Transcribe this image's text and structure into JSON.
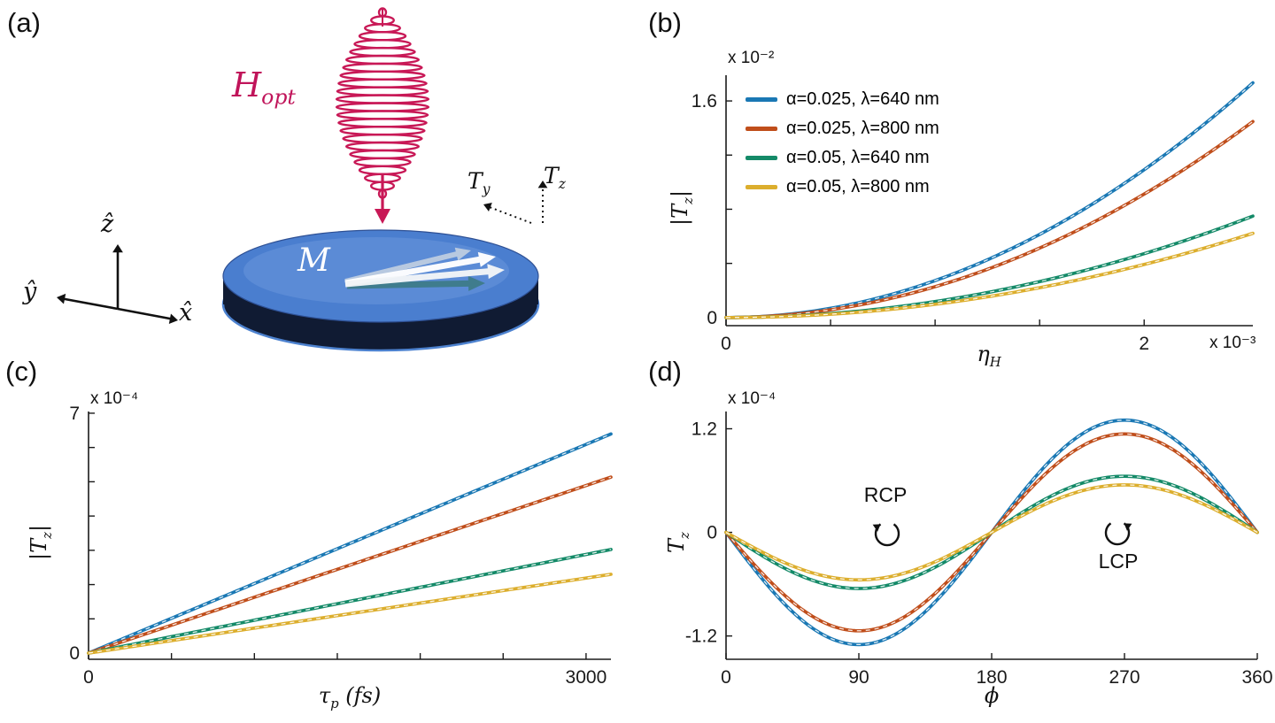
{
  "figure": {
    "background": "#ffffff",
    "panel_labels": {
      "a": "(a)",
      "b": "(b)",
      "c": "(c)",
      "d": "(d)"
    }
  },
  "panel_a": {
    "field_label": {
      "base": "H",
      "sub": "opt"
    },
    "magnetization_label": "M",
    "torque_y": {
      "base": "T",
      "sub": "y"
    },
    "torque_z": {
      "base": "T",
      "sub": "z"
    },
    "axis_x": "x̂",
    "axis_y": "ŷ",
    "axis_z": "ẑ",
    "colors": {
      "spiral": "#c81856",
      "field_label": "#c0145a",
      "disk_top": "#4a7ecf",
      "disk_top_highlight": "#6b97dd",
      "disk_side": "#101b33",
      "disk_rim": "#4d82cf",
      "arrow_teal": "#3c7a85"
    }
  },
  "panel_d_annotations": {
    "rcp": "RCP",
    "lcp": "LCP"
  },
  "chart_data": [
    {
      "panel": "b",
      "type": "line",
      "title": "",
      "xlabel": {
        "base": "η",
        "sub": "H",
        "post": ""
      },
      "ylabel": {
        "pre": "|",
        "base": "T",
        "sub": "z",
        "post": "|"
      },
      "x_multiplier": "x 10⁻³",
      "y_multiplier": "x 10⁻²",
      "xlim": [
        0,
        2.52
      ],
      "ylim": [
        -0.06,
        1.79
      ],
      "xticks": [
        0,
        0.5,
        1,
        1.5,
        2
      ],
      "xtick_labels": [
        "0",
        "",
        "",
        "",
        "2"
      ],
      "yticks": [
        0,
        0.4,
        0.8,
        1.2,
        1.6
      ],
      "ytick_labels": [
        "0",
        "",
        "",
        "",
        "1.6"
      ],
      "grid": false,
      "legend_position": "top-left",
      "series": [
        {
          "name": "α=0.025, λ=640 nm",
          "color": "#1a78b4",
          "model": {
            "type": "quadratic",
            "a": 0.273
          },
          "x": [
            0,
            0.5,
            1.0,
            1.5,
            2.0,
            2.5
          ],
          "y": [
            0,
            0.068,
            0.273,
            0.614,
            1.092,
            1.706
          ]
        },
        {
          "name": "α=0.025, λ=800 nm",
          "color": "#c04e1b",
          "model": {
            "type": "quadratic",
            "a": 0.228
          },
          "x": [
            0,
            0.5,
            1.0,
            1.5,
            2.0,
            2.5
          ],
          "y": [
            0,
            0.057,
            0.228,
            0.513,
            0.912,
            1.425
          ]
        },
        {
          "name": "α=0.05, λ=640 nm",
          "color": "#148a68",
          "model": {
            "type": "quadratic",
            "a": 0.118
          },
          "x": [
            0,
            0.5,
            1.0,
            1.5,
            2.0,
            2.5
          ],
          "y": [
            0,
            0.03,
            0.118,
            0.266,
            0.472,
            0.738
          ]
        },
        {
          "name": "α=0.05, λ=800 nm",
          "color": "#dcae2d",
          "model": {
            "type": "quadratic",
            "a": 0.098
          },
          "x": [
            0,
            0.5,
            1.0,
            1.5,
            2.0,
            2.5
          ],
          "y": [
            0,
            0.025,
            0.098,
            0.221,
            0.392,
            0.613
          ]
        }
      ]
    },
    {
      "panel": "c",
      "type": "line",
      "title": "",
      "xlabel": {
        "base": "τ",
        "sub": "p",
        "post": " (fs)"
      },
      "ylabel": {
        "pre": "|",
        "base": "T",
        "sub": "z",
        "post": "|"
      },
      "x_multiplier": "",
      "y_multiplier": "x 10⁻⁴",
      "xlim": [
        0,
        3150
      ],
      "ylim": [
        -0.18,
        7.05
      ],
      "xticks": [
        0,
        500,
        1000,
        1500,
        2000,
        2500,
        3000
      ],
      "xtick_labels": [
        "0",
        "",
        "",
        "",
        "",
        "",
        "3000"
      ],
      "yticks": [
        0,
        1,
        2,
        3,
        4,
        5,
        6,
        7
      ],
      "ytick_labels": [
        "0",
        "",
        "",
        "",
        "",
        "",
        "",
        "7"
      ],
      "grid": false,
      "series": [
        {
          "name": "α=0.025, λ=640 nm",
          "color": "#1a78b4",
          "model": {
            "type": "linear",
            "a": 0.00203
          },
          "x": [
            0,
            1000,
            2000,
            3000
          ],
          "y": [
            0,
            2.03,
            4.06,
            6.09
          ]
        },
        {
          "name": "α=0.025, λ=800 nm",
          "color": "#c04e1b",
          "model": {
            "type": "linear",
            "a": 0.00163
          },
          "x": [
            0,
            1000,
            2000,
            3000
          ],
          "y": [
            0,
            1.63,
            3.26,
            4.89
          ]
        },
        {
          "name": "α=0.05, λ=640 nm",
          "color": "#148a68",
          "model": {
            "type": "linear",
            "a": 0.00096
          },
          "x": [
            0,
            1000,
            2000,
            3000
          ],
          "y": [
            0,
            0.96,
            1.92,
            2.88
          ]
        },
        {
          "name": "α=0.05, λ=800 nm",
          "color": "#dcae2d",
          "model": {
            "type": "linear",
            "a": 0.00073
          },
          "x": [
            0,
            1000,
            2000,
            3000
          ],
          "y": [
            0,
            0.73,
            1.46,
            2.19
          ]
        }
      ]
    },
    {
      "panel": "d",
      "type": "line",
      "title": "",
      "xlabel": {
        "base": "ϕ",
        "sub": "",
        "post": ""
      },
      "ylabel": {
        "pre": "",
        "base": "T",
        "sub": "z",
        "post": ""
      },
      "x_multiplier": "",
      "y_multiplier": "x 10⁻⁴",
      "xlim": [
        0,
        360
      ],
      "ylim": [
        -1.47,
        1.4
      ],
      "xticks": [
        0,
        90,
        180,
        270,
        360
      ],
      "xtick_labels": [
        "0",
        "90",
        "180",
        "270",
        "360"
      ],
      "yticks": [
        -1.2,
        0,
        1.2
      ],
      "ytick_labels": [
        "-1.2",
        "0",
        "1.2"
      ],
      "grid": false,
      "annotations": [
        "RCP",
        "LCP"
      ],
      "series": [
        {
          "name": "α=0.025, λ=640 nm",
          "color": "#1a78b4",
          "model": {
            "type": "sine",
            "a": -1.3
          },
          "x": [
            0,
            90,
            180,
            270,
            360
          ],
          "y": [
            0,
            -1.3,
            0,
            1.3,
            0
          ]
        },
        {
          "name": "α=0.025, λ=800 nm",
          "color": "#c04e1b",
          "model": {
            "type": "sine",
            "a": -1.14
          },
          "x": [
            0,
            90,
            180,
            270,
            360
          ],
          "y": [
            0,
            -1.14,
            0,
            1.14,
            0
          ]
        },
        {
          "name": "α=0.05, λ=640 nm",
          "color": "#148a68",
          "model": {
            "type": "sine",
            "a": -0.65
          },
          "x": [
            0,
            90,
            180,
            270,
            360
          ],
          "y": [
            0,
            -0.65,
            0,
            0.65,
            0
          ]
        },
        {
          "name": "α=0.05, λ=800 nm",
          "color": "#dcae2d",
          "model": {
            "type": "sine",
            "a": -0.55
          },
          "x": [
            0,
            90,
            180,
            270,
            360
          ],
          "y": [
            0,
            -0.55,
            0,
            0.55,
            0
          ]
        }
      ]
    }
  ]
}
